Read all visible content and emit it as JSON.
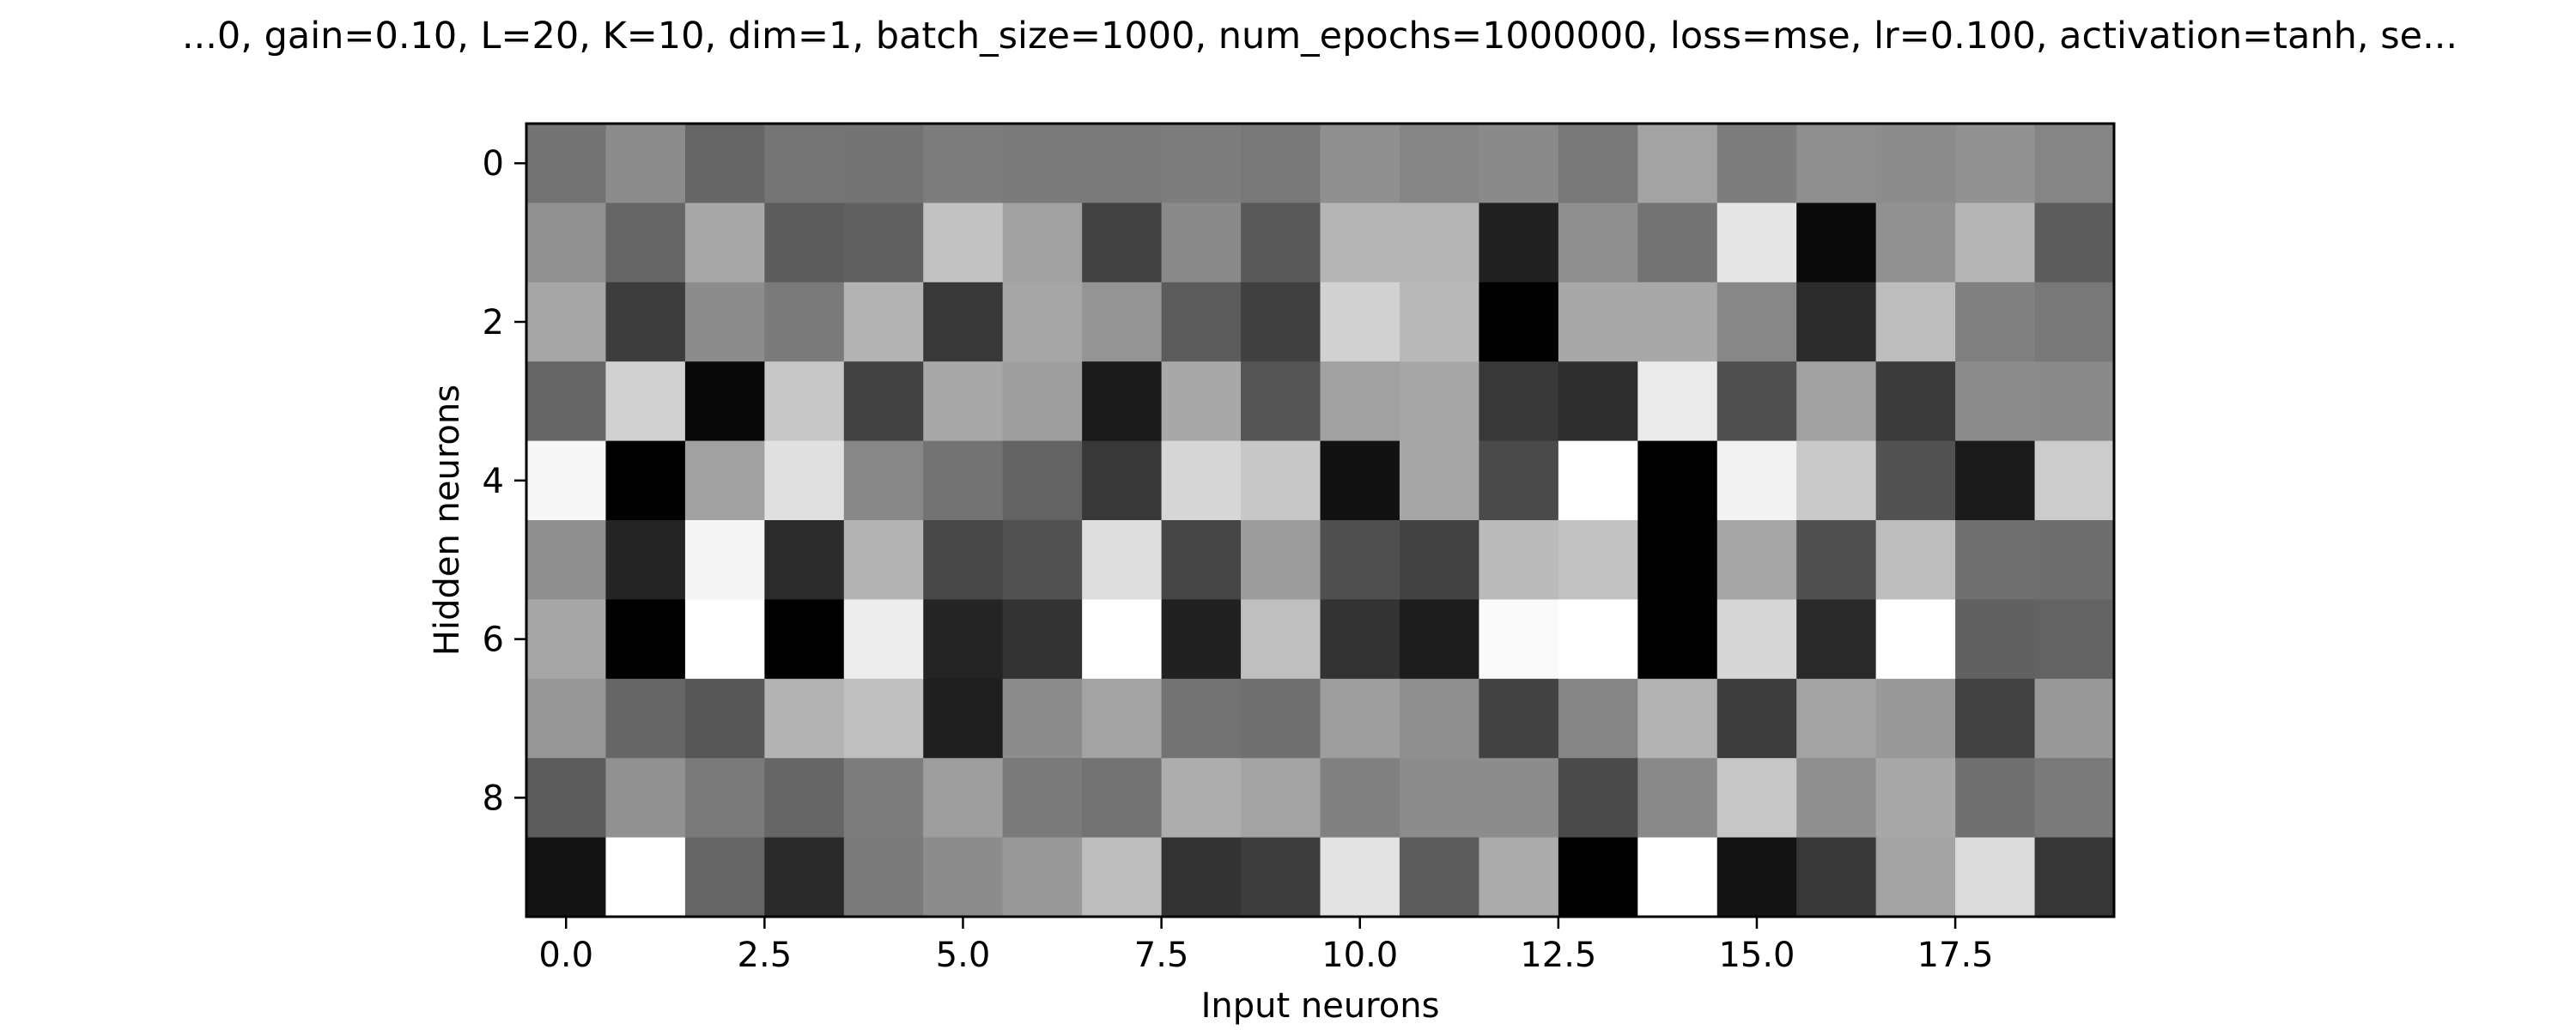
{
  "chart_data": {
    "type": "heatmap",
    "title": "...0, gain=0.10, L=20, K=10, dim=1, batch_size=1000, num_epochs=1000000, loss=mse, lr=0.100, activation=tanh, se...",
    "xlabel": "Input neurons",
    "ylabel": "Hidden neurons",
    "colormap": "gray",
    "colormap_low": "#000000",
    "colormap_high": "#ffffff",
    "xlim": [
      -0.5,
      19.5
    ],
    "ylim": [
      9.5,
      -0.5
    ],
    "xticks": [
      0.0,
      2.5,
      5.0,
      7.5,
      10.0,
      12.5,
      15.0,
      17.5
    ],
    "xtick_labels": [
      "0.0",
      "2.5",
      "5.0",
      "7.5",
      "10.0",
      "12.5",
      "15.0",
      "17.5"
    ],
    "yticks": [
      0,
      2,
      4,
      6,
      8
    ],
    "ytick_labels": [
      "0",
      "2",
      "4",
      "6",
      "8"
    ],
    "grid": false,
    "legend": "none",
    "rows": 10,
    "cols": 20,
    "values": [
      [
        0.45,
        0.55,
        0.4,
        0.46,
        0.45,
        0.49,
        0.48,
        0.48,
        0.49,
        0.47,
        0.56,
        0.52,
        0.54,
        0.47,
        0.64,
        0.49,
        0.56,
        0.55,
        0.57,
        0.52
      ],
      [
        0.57,
        0.4,
        0.66,
        0.36,
        0.38,
        0.76,
        0.63,
        0.26,
        0.54,
        0.35,
        0.71,
        0.71,
        0.13,
        0.56,
        0.45,
        0.9,
        0.04,
        0.57,
        0.71,
        0.36
      ],
      [
        0.65,
        0.24,
        0.55,
        0.48,
        0.7,
        0.22,
        0.65,
        0.58,
        0.36,
        0.25,
        0.82,
        0.72,
        0.0,
        0.66,
        0.66,
        0.53,
        0.17,
        0.74,
        0.5,
        0.47
      ],
      [
        0.4,
        0.82,
        0.03,
        0.78,
        0.26,
        0.66,
        0.62,
        0.1,
        0.66,
        0.33,
        0.63,
        0.65,
        0.22,
        0.18,
        0.92,
        0.31,
        0.63,
        0.23,
        0.55,
        0.54
      ],
      [
        0.97,
        0.0,
        0.63,
        0.88,
        0.53,
        0.45,
        0.39,
        0.22,
        0.84,
        0.78,
        0.07,
        0.65,
        0.29,
        1.0,
        0.0,
        0.95,
        0.79,
        0.32,
        0.1,
        0.8
      ],
      [
        0.56,
        0.14,
        0.96,
        0.17,
        0.7,
        0.28,
        0.32,
        0.87,
        0.27,
        0.61,
        0.31,
        0.26,
        0.73,
        0.76,
        0.0,
        0.65,
        0.31,
        0.74,
        0.44,
        0.43
      ],
      [
        0.65,
        0.0,
        1.0,
        0.0,
        0.93,
        0.14,
        0.2,
        1.0,
        0.13,
        0.75,
        0.2,
        0.11,
        0.98,
        1.0,
        0.0,
        0.84,
        0.16,
        1.0,
        0.38,
        0.39
      ],
      [
        0.59,
        0.4,
        0.34,
        0.7,
        0.75,
        0.12,
        0.55,
        0.64,
        0.45,
        0.44,
        0.62,
        0.56,
        0.26,
        0.52,
        0.7,
        0.24,
        0.64,
        0.6,
        0.26,
        0.6
      ],
      [
        0.36,
        0.57,
        0.48,
        0.4,
        0.49,
        0.62,
        0.48,
        0.45,
        0.68,
        0.64,
        0.5,
        0.55,
        0.55,
        0.29,
        0.54,
        0.78,
        0.56,
        0.66,
        0.44,
        0.48
      ],
      [
        0.08,
        1.0,
        0.4,
        0.16,
        0.48,
        0.55,
        0.6,
        0.74,
        0.2,
        0.24,
        0.89,
        0.36,
        0.67,
        0.0,
        1.0,
        0.08,
        0.22,
        0.64,
        0.86,
        0.21
      ]
    ]
  }
}
